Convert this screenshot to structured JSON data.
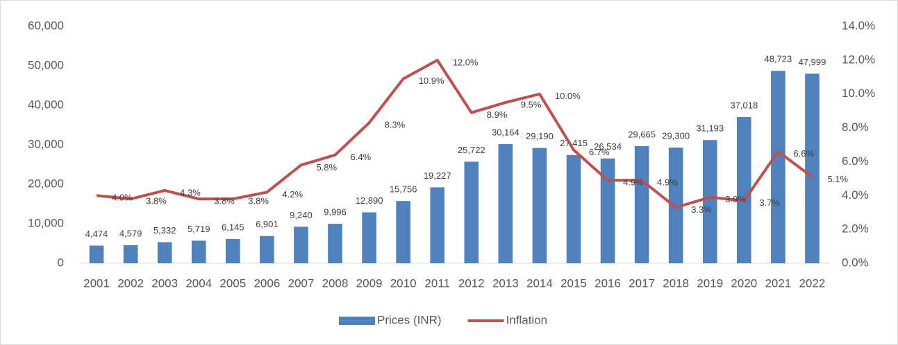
{
  "chart_data": {
    "type": "bar_line",
    "categories": [
      "2001",
      "2002",
      "2003",
      "2004",
      "2005",
      "2006",
      "2007",
      "2008",
      "2009",
      "2010",
      "2011",
      "2012",
      "2013",
      "2014",
      "2015",
      "2016",
      "2017",
      "2018",
      "2019",
      "2020",
      "2021",
      "2022"
    ],
    "series": [
      {
        "name": "Prices (INR)",
        "type": "bar",
        "color": "#4f81bd",
        "values": [
          4474,
          4579,
          5332,
          5719,
          6145,
          6901,
          9240,
          9996,
          12890,
          15756,
          19227,
          25722,
          30164,
          29190,
          27415,
          26534,
          29665,
          29300,
          31193,
          37018,
          48723,
          47999
        ],
        "value_labels": [
          "4,474",
          "4,579",
          "5,332",
          "5,719",
          "6,145",
          "6,901",
          "9,240",
          "9,996",
          "12,890",
          "15,756",
          "19,227",
          "25,722",
          "30,164",
          "29,190",
          "27,415",
          "26,534",
          "29,665",
          "29,300",
          "31,193",
          "37,018",
          "48,723",
          "47,999"
        ]
      },
      {
        "name": "Inflation",
        "type": "line",
        "color": "#c0504d",
        "axis": "y2",
        "values": [
          4.0,
          3.8,
          4.3,
          3.8,
          3.8,
          4.2,
          5.8,
          6.4,
          8.3,
          10.9,
          12.0,
          8.9,
          9.5,
          10.0,
          6.7,
          4.9,
          4.9,
          3.3,
          3.9,
          3.7,
          6.6,
          5.1
        ],
        "value_labels": [
          "4.0%",
          "3.8%",
          "4.3%",
          "3.8%",
          "3.8%",
          "4.2%",
          "5.8%",
          "6.4%",
          "8.3%",
          "10.9%",
          "12.0%",
          "8.9%",
          "9.5%",
          "10.0%",
          "6.7%",
          "4.9%",
          "4.9%",
          "3.3%",
          "3.9%",
          "3.7%",
          "6.6%",
          "5.1%"
        ]
      }
    ],
    "ylim": [
      0,
      60000
    ],
    "yticks": [
      0,
      {
        "value": 10000,
        "label": "10,000"
      },
      {
        "value": 20000,
        "label": "20,000"
      },
      {
        "value": 30000,
        "label": "30,000"
      },
      {
        "value": 40000,
        "label": "40,000"
      },
      {
        "value": 50000,
        "label": "50,000"
      },
      {
        "value": 60000,
        "label": "60,000"
      }
    ],
    "y2lim": [
      0,
      14
    ],
    "y2ticks": [
      {
        "value": 0,
        "label": "0.0%"
      },
      {
        "value": 2,
        "label": "2.0%"
      },
      {
        "value": 4,
        "label": "4.0%"
      },
      {
        "value": 6,
        "label": "6.0%"
      },
      {
        "value": 8,
        "label": "8.0%"
      },
      {
        "value": 10,
        "label": "10.0%"
      },
      {
        "value": 12,
        "label": "12.0%"
      },
      {
        "value": 14,
        "label": "14.0%"
      }
    ],
    "legend": "bottom"
  }
}
